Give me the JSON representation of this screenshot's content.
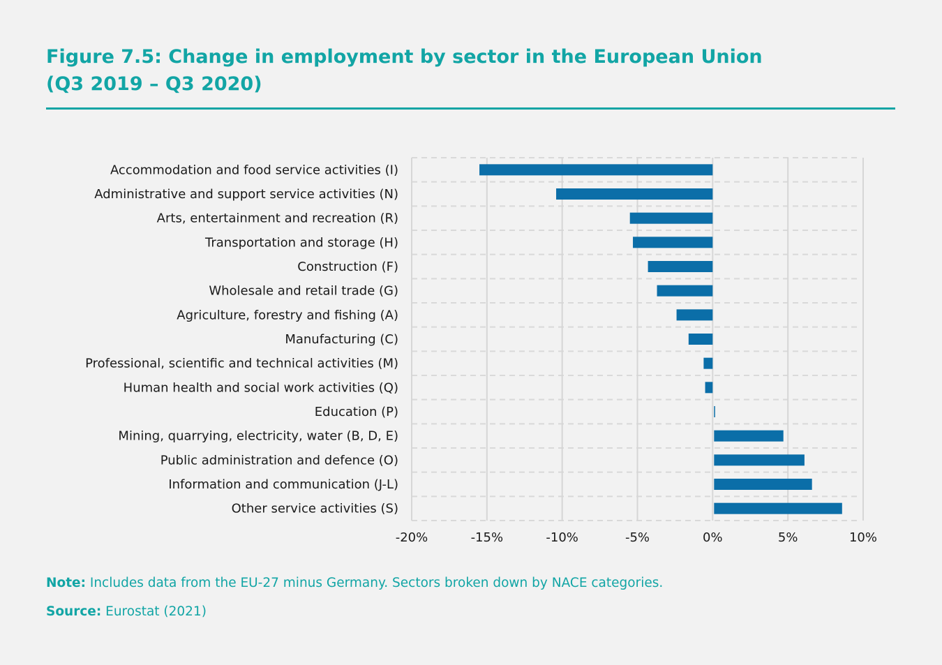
{
  "title_line1": "Figure 7.5: Change in employment by sector in the European Union",
  "title_line2": "(Q3 2019 – Q3 2020)",
  "note": {
    "label": "Note:",
    "text": " Includes data from the EU-27 minus Germany. Sectors broken down by NACE categories."
  },
  "source": {
    "label": "Source:",
    "text": " Eurostat (2021)"
  },
  "colors": {
    "accent": "#12a5a5",
    "bar": "#0b6ea8"
  },
  "chart_data": {
    "type": "bar",
    "orientation": "horizontal",
    "categories": [
      "Accommodation and food service activities (I)",
      "Administrative and support service activities (N)",
      "Arts, entertainment and recreation (R)",
      "Transportation and storage (H)",
      "Construction (F)",
      "Wholesale and retail trade (G)",
      "Agriculture, forestry and fishing (A)",
      "Manufacturing (C)",
      "Professional, scientific and technical activities (M)",
      "Human health and social work activities (Q)",
      "Education (P)",
      "Mining, quarrying, electricity, water (B, D, E)",
      "Public administration and defence (O)",
      "Information and communication (J-L)",
      "Other service activities (S)"
    ],
    "values": [
      -15.5,
      -10.4,
      -5.5,
      -5.3,
      -4.3,
      -3.7,
      -2.4,
      -1.6,
      -0.6,
      -0.5,
      0.1,
      4.7,
      6.1,
      6.6,
      8.6
    ],
    "xlim": [
      -20,
      10
    ],
    "xticks": [
      -20,
      -15,
      -10,
      -5,
      0,
      5,
      10
    ],
    "xtick_labels": [
      "-20%",
      "-15%",
      "-10%",
      "-5%",
      "0%",
      "5%",
      "10%"
    ],
    "grid": "vertical solid, horizontal dashed between rows",
    "legend": "none"
  }
}
